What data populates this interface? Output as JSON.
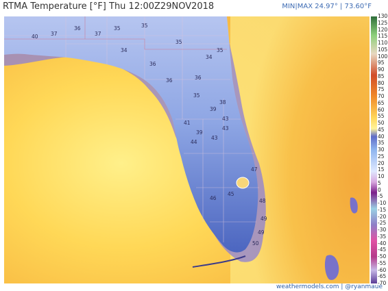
{
  "header": {
    "title": "RTMA Temperature [°F]  Thu 12:00Z29NOV2018",
    "minmax": "MIN|MAX 24.97°  |  73.60°F"
  },
  "footer": {
    "credit": "weathermodels.com | @ryanmaue"
  },
  "legend": {
    "ticks": [
      "130",
      "125",
      "120",
      "115",
      "110",
      "105",
      "100",
      "95",
      "90",
      "85",
      "80",
      "75",
      "70",
      "65",
      "60",
      "55",
      "50",
      "45",
      "40",
      "35",
      "30",
      "25",
      "20",
      "15",
      "10",
      "5",
      "0",
      "-5",
      "-10",
      "-15",
      "-20",
      "-25",
      "-30",
      "-35",
      "-40",
      "-45",
      "-50",
      "-55",
      "-60",
      "-65",
      "-70"
    ]
  },
  "map_labels": [
    {
      "text": "40"
    },
    {
      "text": "37"
    },
    {
      "text": "36"
    },
    {
      "text": "37"
    },
    {
      "text": "35"
    },
    {
      "text": "35"
    },
    {
      "text": "34"
    },
    {
      "text": "35"
    },
    {
      "text": "34"
    },
    {
      "text": "35"
    },
    {
      "text": "36"
    },
    {
      "text": "36"
    },
    {
      "text": "36"
    },
    {
      "text": "35"
    },
    {
      "text": "39"
    },
    {
      "text": "38"
    },
    {
      "text": "41"
    },
    {
      "text": "39"
    },
    {
      "text": "44"
    },
    {
      "text": "43"
    },
    {
      "text": "43"
    },
    {
      "text": "43"
    },
    {
      "text": "47"
    },
    {
      "text": "45"
    },
    {
      "text": "46"
    },
    {
      "text": "48"
    },
    {
      "text": "49"
    },
    {
      "text": "49"
    },
    {
      "text": "50"
    }
  ],
  "colors": {
    "land_cold": "#9fb3ea",
    "land_cool": "#5571c8",
    "gulf_warm": "#ffd25c",
    "ocean_warm": "#f7b43e",
    "coast_edge": "#8c7fd6"
  }
}
